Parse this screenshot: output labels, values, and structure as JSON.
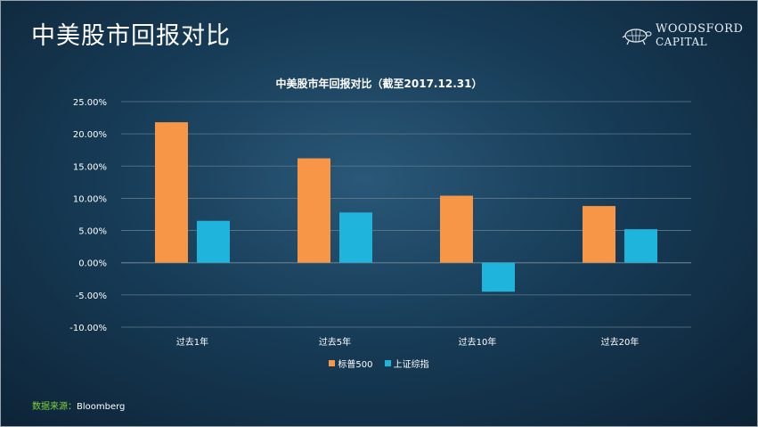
{
  "slide_title": "中美股市回报对比",
  "logo": {
    "line1": "WOODSFORD",
    "line2": "CAPITAL",
    "icon": "turtle-icon"
  },
  "source": {
    "label": "数据来源",
    "separator": "：",
    "value": "Bloomberg"
  },
  "colors": {
    "sp500": "#f79646",
    "shanghai": "#1fb4dc",
    "grid": "#5f7a8c",
    "text": "#ffffff"
  },
  "chart_data": {
    "type": "bar",
    "title": "中美股市年回报对比（截至2017.12.31）",
    "xlabel": "",
    "ylabel": "",
    "categories": [
      "过去1年",
      "过去5年",
      "过去10年",
      "过去20年"
    ],
    "series": [
      {
        "name": "标普500",
        "values": [
          21.8,
          16.2,
          10.4,
          8.8
        ]
      },
      {
        "name": "上证综指",
        "values": [
          6.5,
          7.8,
          -4.5,
          5.2
        ]
      }
    ],
    "ylim": [
      -10,
      25
    ],
    "yticks": [
      25,
      20,
      15,
      10,
      5,
      0,
      -5,
      -10
    ],
    "ytick_labels": [
      "25.00%",
      "20.00%",
      "15.00%",
      "10.00%",
      "5.00%",
      "0.00%",
      "-5.00%",
      "-10.00%"
    ],
    "grid": true,
    "legend_position": "bottom"
  }
}
